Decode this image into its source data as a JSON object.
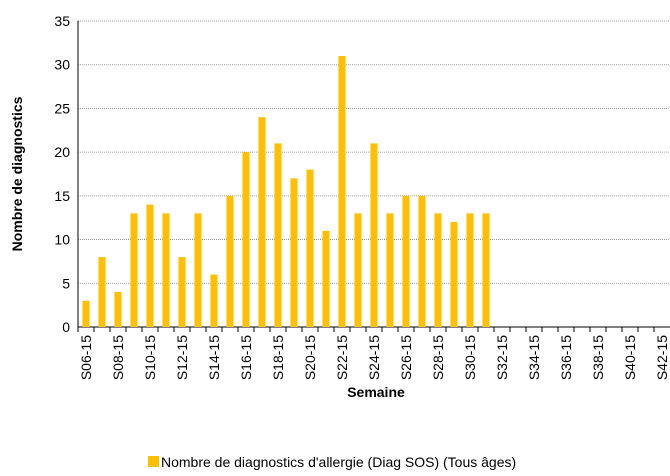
{
  "chart_data": {
    "type": "bar",
    "x_label": "Semaine",
    "y_label": "Nombre de diagnostics",
    "categories": [
      "S06-15",
      null,
      "S08-15",
      null,
      "S10-15",
      null,
      "S12-15",
      null,
      "S14-15",
      null,
      "S16-15",
      null,
      "S18-15",
      null,
      "S20-15",
      null,
      "S22-15",
      null,
      "S24-15",
      null,
      "S26-15",
      null,
      "S28-15",
      null,
      "S30-15",
      null,
      "S32-15",
      null,
      "S34-15",
      null,
      "S36-15",
      null,
      "S38-15",
      null,
      "S40-15",
      null,
      "S42-15"
    ],
    "series": [
      {
        "name": "Nombre de diagnostics d'allergie (Diag SOS) (Tous âges)",
        "color": "#ffc000",
        "values": [
          3,
          8,
          4,
          13,
          14,
          13,
          8,
          13,
          6,
          15,
          20,
          24,
          21,
          17,
          18,
          11,
          31,
          13,
          21,
          13,
          15,
          15,
          13,
          12,
          13,
          13,
          null,
          null,
          null,
          null,
          null,
          null,
          null,
          null,
          null,
          null,
          null
        ]
      }
    ],
    "ylim": [
      0,
      35
    ],
    "yticks": [
      0,
      5,
      10,
      15,
      20,
      25,
      30,
      35
    ],
    "grid": true
  }
}
